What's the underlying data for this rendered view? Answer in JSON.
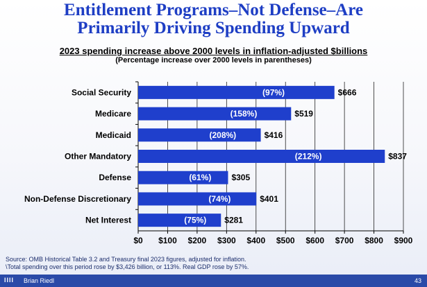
{
  "title": {
    "line1": "Entitlement Programs–Not Defense–Are",
    "line2": "Primarily Driving Spending Upward"
  },
  "chart_data": {
    "type": "bar",
    "orientation": "horizontal",
    "title": "2023 spending increase above 2000 levels in inflation-adjusted $billions",
    "subtitle": "(Percentage increase over 2000 levels in parentheses)",
    "categories": [
      "Social Security",
      "Medicare",
      "Medicaid",
      "Other Mandatory",
      "Defense",
      "Non-Defense Discretionary",
      "Net Interest"
    ],
    "values": [
      666,
      519,
      416,
      837,
      305,
      401,
      281
    ],
    "value_labels": [
      "$666",
      "$519",
      "$416",
      "$837",
      "$305",
      "$401",
      "$281"
    ],
    "pct_labels": [
      "(97%)",
      "(158%)",
      "(208%)",
      "(212%)",
      "(61%)",
      "(74%)",
      "(75%)"
    ],
    "xlim": [
      0,
      900
    ],
    "xticks": [
      0,
      100,
      200,
      300,
      400,
      500,
      600,
      700,
      800,
      900
    ],
    "xtick_labels": [
      "$0",
      "$100",
      "$200",
      "$300",
      "$400",
      "$500",
      "$600",
      "$700",
      "$800",
      "$900"
    ],
    "grid": true,
    "bar_color": "#1f3fcc",
    "title_color": "#1e3ec4"
  },
  "source": {
    "line1": "Source: OMB Historical Table 3.2 and Treasury final 2023 figures, adjusted for inflation.",
    "line2": "\\Total spending over this period rose by $3,426 billion, or 113%. Real GDP rose by 57%."
  },
  "footer": {
    "logo": "IIII",
    "author": "Brian Riedl",
    "page": "43"
  }
}
